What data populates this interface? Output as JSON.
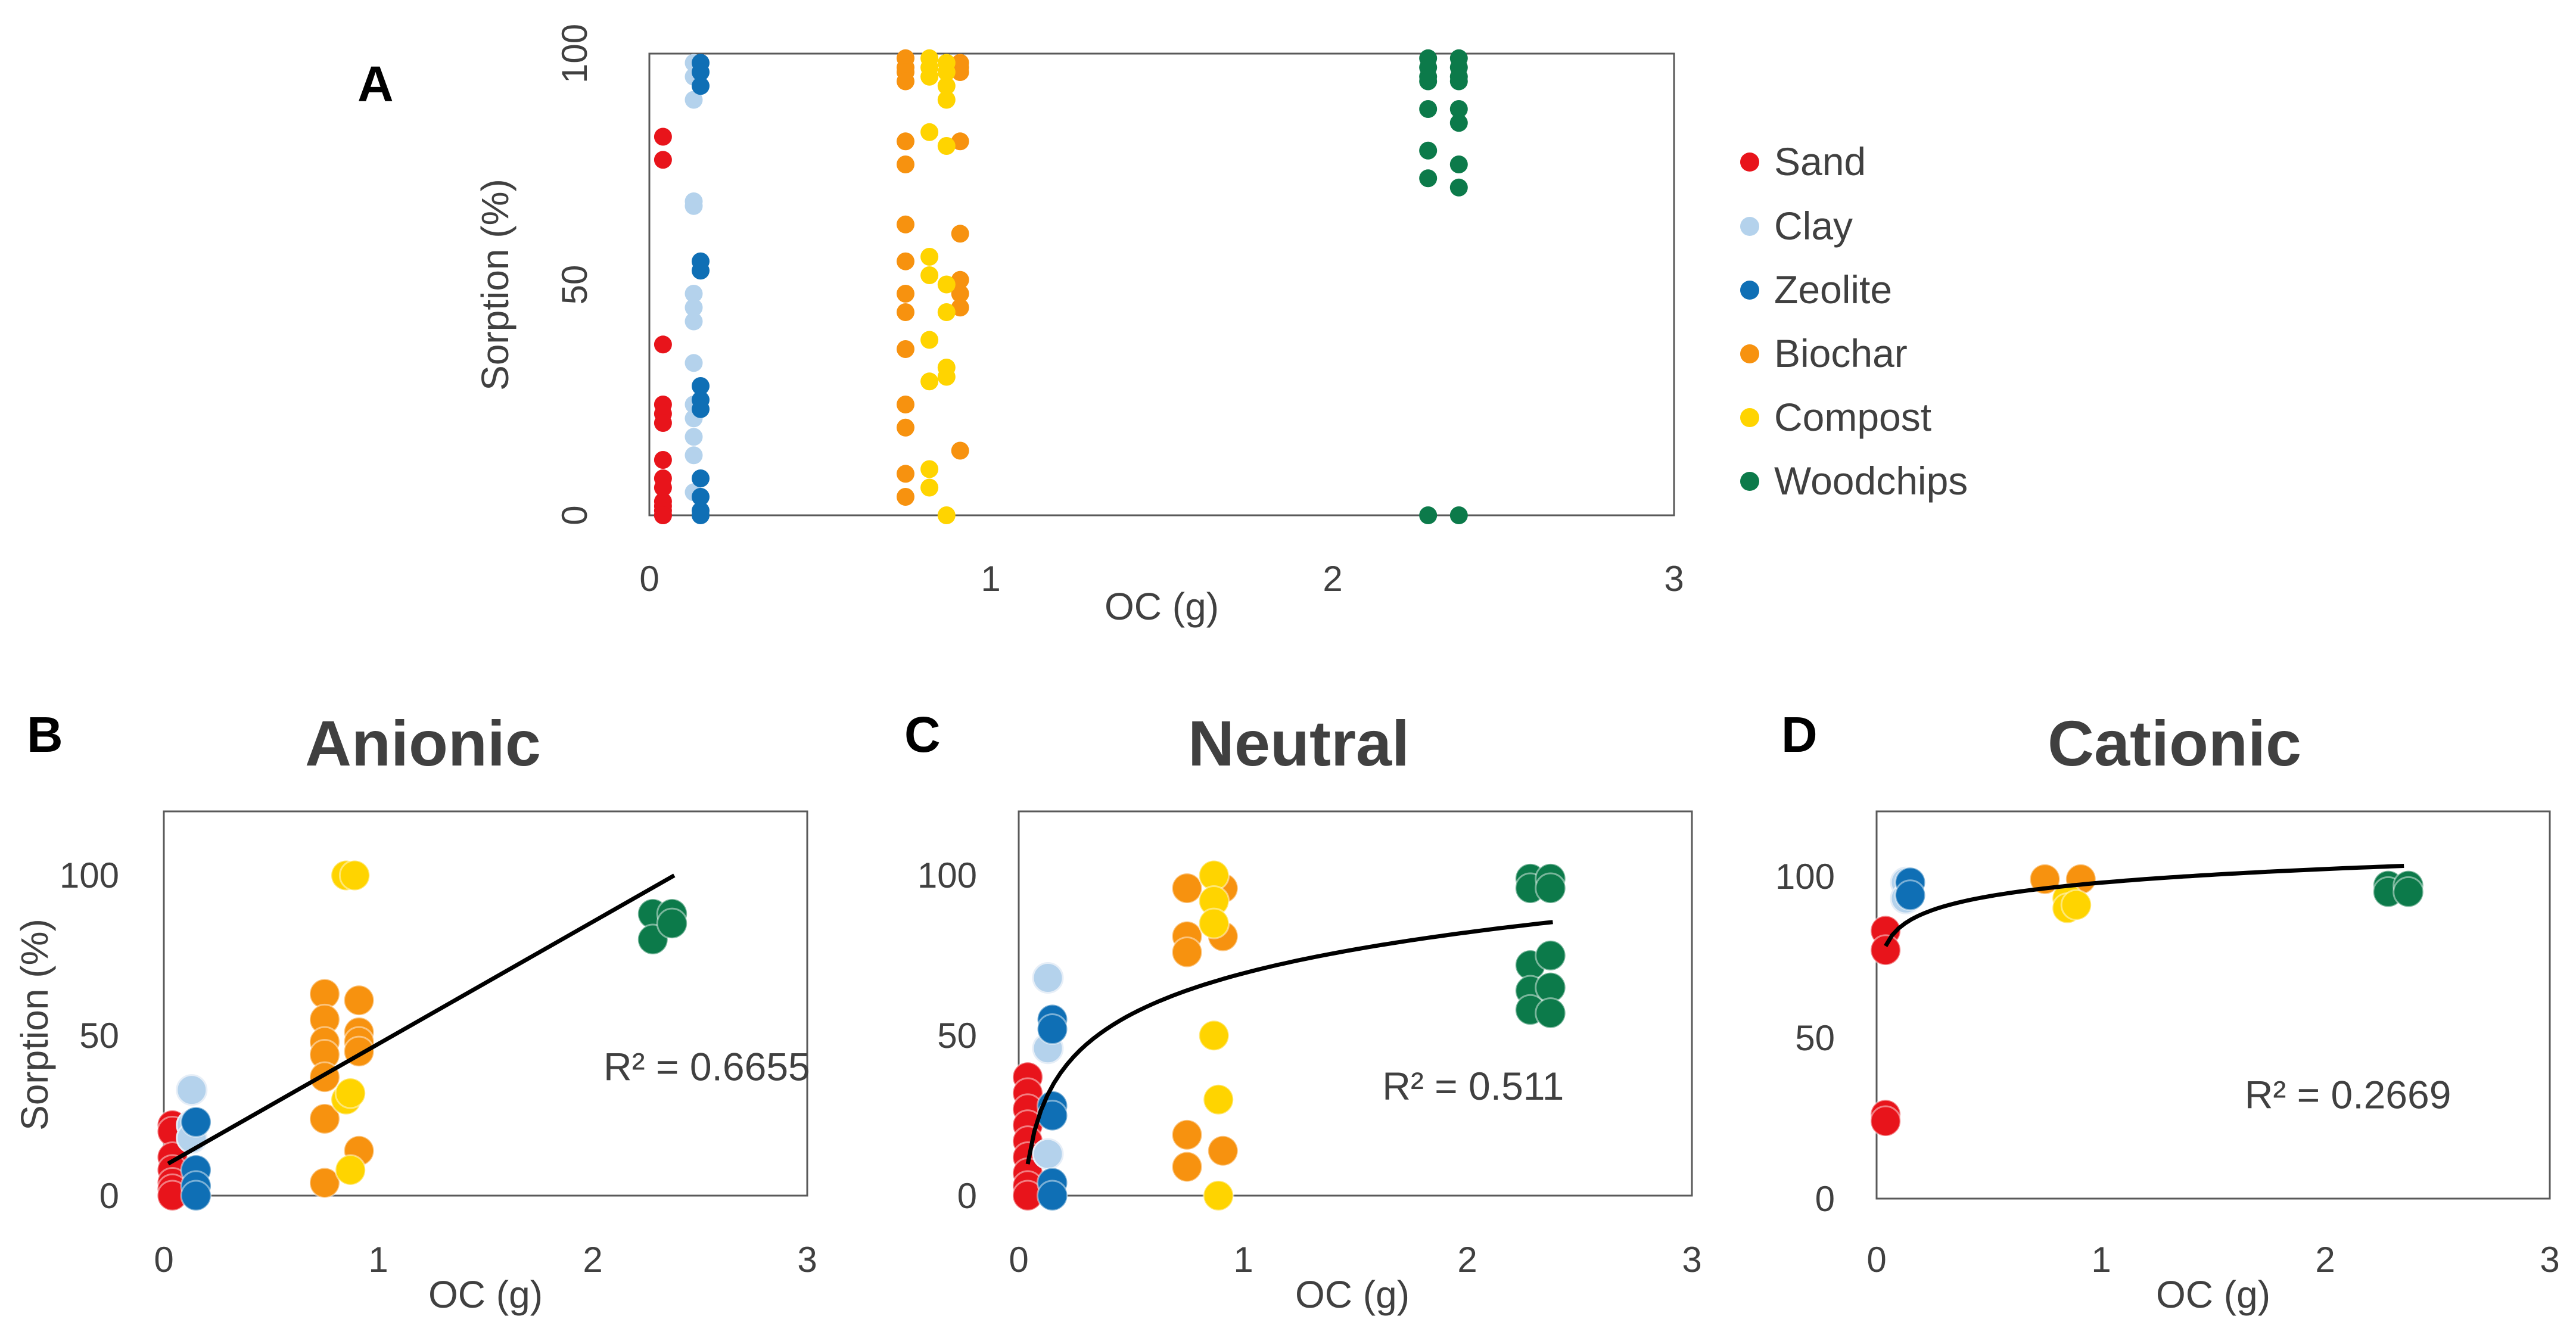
{
  "colors": {
    "Sand": "#e8141b",
    "Clay": "#b4d2ec",
    "Zeolite": "#0f6fb5",
    "Biochar": "#f7920f",
    "Compost": "#ffd400",
    "Woodchips": "#0c7a4a",
    "axis": "#595959",
    "text": "#404040",
    "fit": "#000000"
  },
  "chart_data": [
    {
      "id": "A",
      "panel_label": "A",
      "type": "scatter",
      "title": "",
      "xlabel": "OC (g)",
      "ylabel": "Sorption (%)",
      "xlim": [
        0,
        3
      ],
      "ylim": [
        0,
        100
      ],
      "xticks": [
        0,
        1,
        2,
        3
      ],
      "yticks": [
        0,
        50,
        100
      ],
      "legend": [
        "Sand",
        "Clay",
        "Zeolite",
        "Biochar",
        "Compost",
        "Woodchips"
      ],
      "legend_position": "right",
      "series": [
        {
          "name": "Sand",
          "x": [
            0.04,
            0.04,
            0.04,
            0.04,
            0.04,
            0.04,
            0.04,
            0.04,
            0.04,
            0.04,
            0.04,
            0.04,
            0.04,
            0.04
          ],
          "y": [
            82,
            77,
            37,
            24,
            22,
            20,
            12,
            8,
            6,
            3,
            2,
            1,
            0,
            0
          ]
        },
        {
          "name": "Clay",
          "x": [
            0.13,
            0.13,
            0.13,
            0.13,
            0.13,
            0.13,
            0.13,
            0.13,
            0.13,
            0.13,
            0.13,
            0.13,
            0.13,
            0.13
          ],
          "y": [
            98,
            95,
            90,
            68,
            67,
            48,
            45,
            42,
            33,
            24,
            21,
            17,
            13,
            5
          ]
        },
        {
          "name": "Zeolite",
          "x": [
            0.15,
            0.15,
            0.15,
            0.15,
            0.15,
            0.15,
            0.15,
            0.15,
            0.15,
            0.15,
            0.15,
            0.15
          ],
          "y": [
            98,
            96,
            93,
            55,
            53,
            28,
            25,
            23,
            8,
            4,
            1,
            0
          ]
        },
        {
          "name": "Biochar",
          "x": [
            0.75,
            0.75,
            0.75,
            0.75,
            0.75,
            0.75,
            0.75,
            0.75,
            0.75,
            0.75,
            0.75,
            0.75,
            0.75,
            0.75,
            0.75,
            0.91,
            0.91,
            0.91,
            0.91,
            0.91,
            0.91,
            0.91,
            0.91,
            0.91
          ],
          "y": [
            99,
            97,
            96,
            94,
            81,
            76,
            63,
            55,
            48,
            44,
            36,
            24,
            19,
            9,
            4,
            98,
            96,
            81,
            61,
            51,
            48,
            45,
            14,
            97
          ]
        },
        {
          "name": "Compost",
          "x": [
            0.82,
            0.82,
            0.82,
            0.82,
            0.82,
            0.82,
            0.82,
            0.82,
            0.82,
            0.82,
            0.87,
            0.87,
            0.87,
            0.87,
            0.87,
            0.87,
            0.87,
            0.87,
            0.87,
            0.87
          ],
          "y": [
            99,
            97,
            95,
            83,
            56,
            52,
            38,
            29,
            10,
            6,
            98,
            96,
            93,
            90,
            80,
            50,
            44,
            32,
            30,
            0
          ]
        },
        {
          "name": "Woodchips",
          "x": [
            2.28,
            2.28,
            2.28,
            2.28,
            2.28,
            2.28,
            2.28,
            2.28,
            2.37,
            2.37,
            2.37,
            2.37,
            2.37,
            2.37,
            2.37,
            2.37,
            2.37
          ],
          "y": [
            99,
            97,
            95,
            94,
            88,
            79,
            73,
            0,
            99,
            97,
            95,
            94,
            88,
            85,
            76,
            71,
            0
          ]
        }
      ]
    },
    {
      "id": "B",
      "panel_label": "B",
      "type": "scatter",
      "title": "Anionic",
      "xlabel": "OC (g)",
      "ylabel": "Sorption (%)",
      "xlim": [
        0,
        3
      ],
      "ylim": [
        0,
        120
      ],
      "xticks": [
        0,
        1,
        2,
        3
      ],
      "yticks": [
        0,
        50,
        100
      ],
      "fit": {
        "type": "linear",
        "x": [
          0.02,
          2.38
        ],
        "y": [
          10,
          100
        ]
      },
      "r2_label": "R² = 0.6655",
      "r2_anchor": [
        2.05,
        36
      ],
      "series": [
        {
          "name": "Sand",
          "x": [
            0.04,
            0.04,
            0.04,
            0.04,
            0.04,
            0.04,
            0.04
          ],
          "y": [
            22,
            20,
            12,
            8,
            4,
            2,
            0
          ]
        },
        {
          "name": "Clay",
          "x": [
            0.13,
            0.13,
            0.13
          ],
          "y": [
            33,
            22,
            18
          ]
        },
        {
          "name": "Zeolite",
          "x": [
            0.15,
            0.15,
            0.15,
            0.15
          ],
          "y": [
            23,
            8,
            3,
            0
          ]
        },
        {
          "name": "Biochar",
          "x": [
            0.75,
            0.75,
            0.75,
            0.75,
            0.75,
            0.75,
            0.75,
            0.91,
            0.91,
            0.91,
            0.91,
            0.91
          ],
          "y": [
            63,
            55,
            48,
            44,
            37,
            24,
            4,
            61,
            51,
            48,
            45,
            14
          ]
        },
        {
          "name": "Compost",
          "x": [
            0.85,
            0.89,
            0.85,
            0.87,
            0.87
          ],
          "y": [
            100,
            100,
            30,
            32,
            8
          ]
        },
        {
          "name": "Woodchips",
          "x": [
            2.28,
            2.28,
            2.37,
            2.37
          ],
          "y": [
            88,
            80,
            88,
            85
          ]
        }
      ]
    },
    {
      "id": "C",
      "panel_label": "C",
      "type": "scatter",
      "title": "Neutral",
      "xlabel": "OC (g)",
      "ylabel": "",
      "xlim": [
        0,
        3
      ],
      "ylim": [
        0,
        120
      ],
      "xticks": [
        0,
        1,
        2,
        3
      ],
      "yticks": [
        0,
        50,
        100
      ],
      "fit": {
        "type": "log",
        "x_range": [
          0.04,
          2.38
        ],
        "a": 69.4,
        "b": 18.5
      },
      "r2_label": "R² = 0.511",
      "r2_anchor": [
        1.62,
        30
      ],
      "series": [
        {
          "name": "Sand",
          "x": [
            0.04,
            0.04,
            0.04,
            0.04,
            0.04,
            0.04,
            0.04,
            0.04,
            0.04
          ],
          "y": [
            37,
            32,
            27,
            22,
            17,
            12,
            7,
            3,
            0
          ]
        },
        {
          "name": "Clay",
          "x": [
            0.13,
            0.13,
            0.13
          ],
          "y": [
            68,
            46,
            13
          ]
        },
        {
          "name": "Zeolite",
          "x": [
            0.15,
            0.15,
            0.15,
            0.15,
            0.15,
            0.15
          ],
          "y": [
            55,
            52,
            28,
            25,
            4,
            0
          ]
        },
        {
          "name": "Biochar",
          "x": [
            0.75,
            0.75,
            0.75,
            0.75,
            0.75,
            0.91,
            0.91,
            0.91
          ],
          "y": [
            96,
            81,
            76,
            19,
            9,
            96,
            81,
            14
          ]
        },
        {
          "name": "Compost",
          "x": [
            0.87,
            0.87,
            0.87,
            0.87,
            0.89,
            0.89
          ],
          "y": [
            100,
            92,
            85,
            50,
            30,
            0
          ]
        },
        {
          "name": "Woodchips",
          "x": [
            2.28,
            2.28,
            2.28,
            2.28,
            2.28,
            2.37,
            2.37,
            2.37,
            2.37,
            2.37
          ],
          "y": [
            99,
            96,
            72,
            64,
            58,
            99,
            96,
            75,
            65,
            57
          ]
        }
      ]
    },
    {
      "id": "D",
      "panel_label": "D",
      "type": "scatter",
      "title": "Cationic",
      "xlabel": "OC (g)",
      "ylabel": "",
      "xlim": [
        0,
        3
      ],
      "ylim": [
        0,
        120
      ],
      "xticks": [
        0,
        1,
        2,
        3
      ],
      "yticks": [
        0,
        50,
        100
      ],
      "fit": {
        "type": "log",
        "x_range": [
          0.04,
          2.35
        ],
        "a": 97.9,
        "b": 6.1
      },
      "r2_label": "R² = 0.2669",
      "r2_anchor": [
        1.64,
        28
      ],
      "series": [
        {
          "name": "Sand",
          "x": [
            0.04,
            0.04,
            0.04,
            0.04
          ],
          "y": [
            83,
            77,
            26,
            24
          ]
        },
        {
          "name": "Clay",
          "x": [
            0.13,
            0.13
          ],
          "y": [
            98,
            93
          ]
        },
        {
          "name": "Zeolite",
          "x": [
            0.15,
            0.15
          ],
          "y": [
            98,
            94
          ]
        },
        {
          "name": "Biochar",
          "x": [
            0.75,
            0.91
          ],
          "y": [
            99,
            99
          ]
        },
        {
          "name": "Compost",
          "x": [
            0.85,
            0.85,
            0.89
          ],
          "y": [
            93,
            90,
            91
          ]
        },
        {
          "name": "Woodchips",
          "x": [
            2.28,
            2.28,
            2.37,
            2.37
          ],
          "y": [
            97,
            95,
            97,
            95
          ]
        }
      ]
    }
  ]
}
